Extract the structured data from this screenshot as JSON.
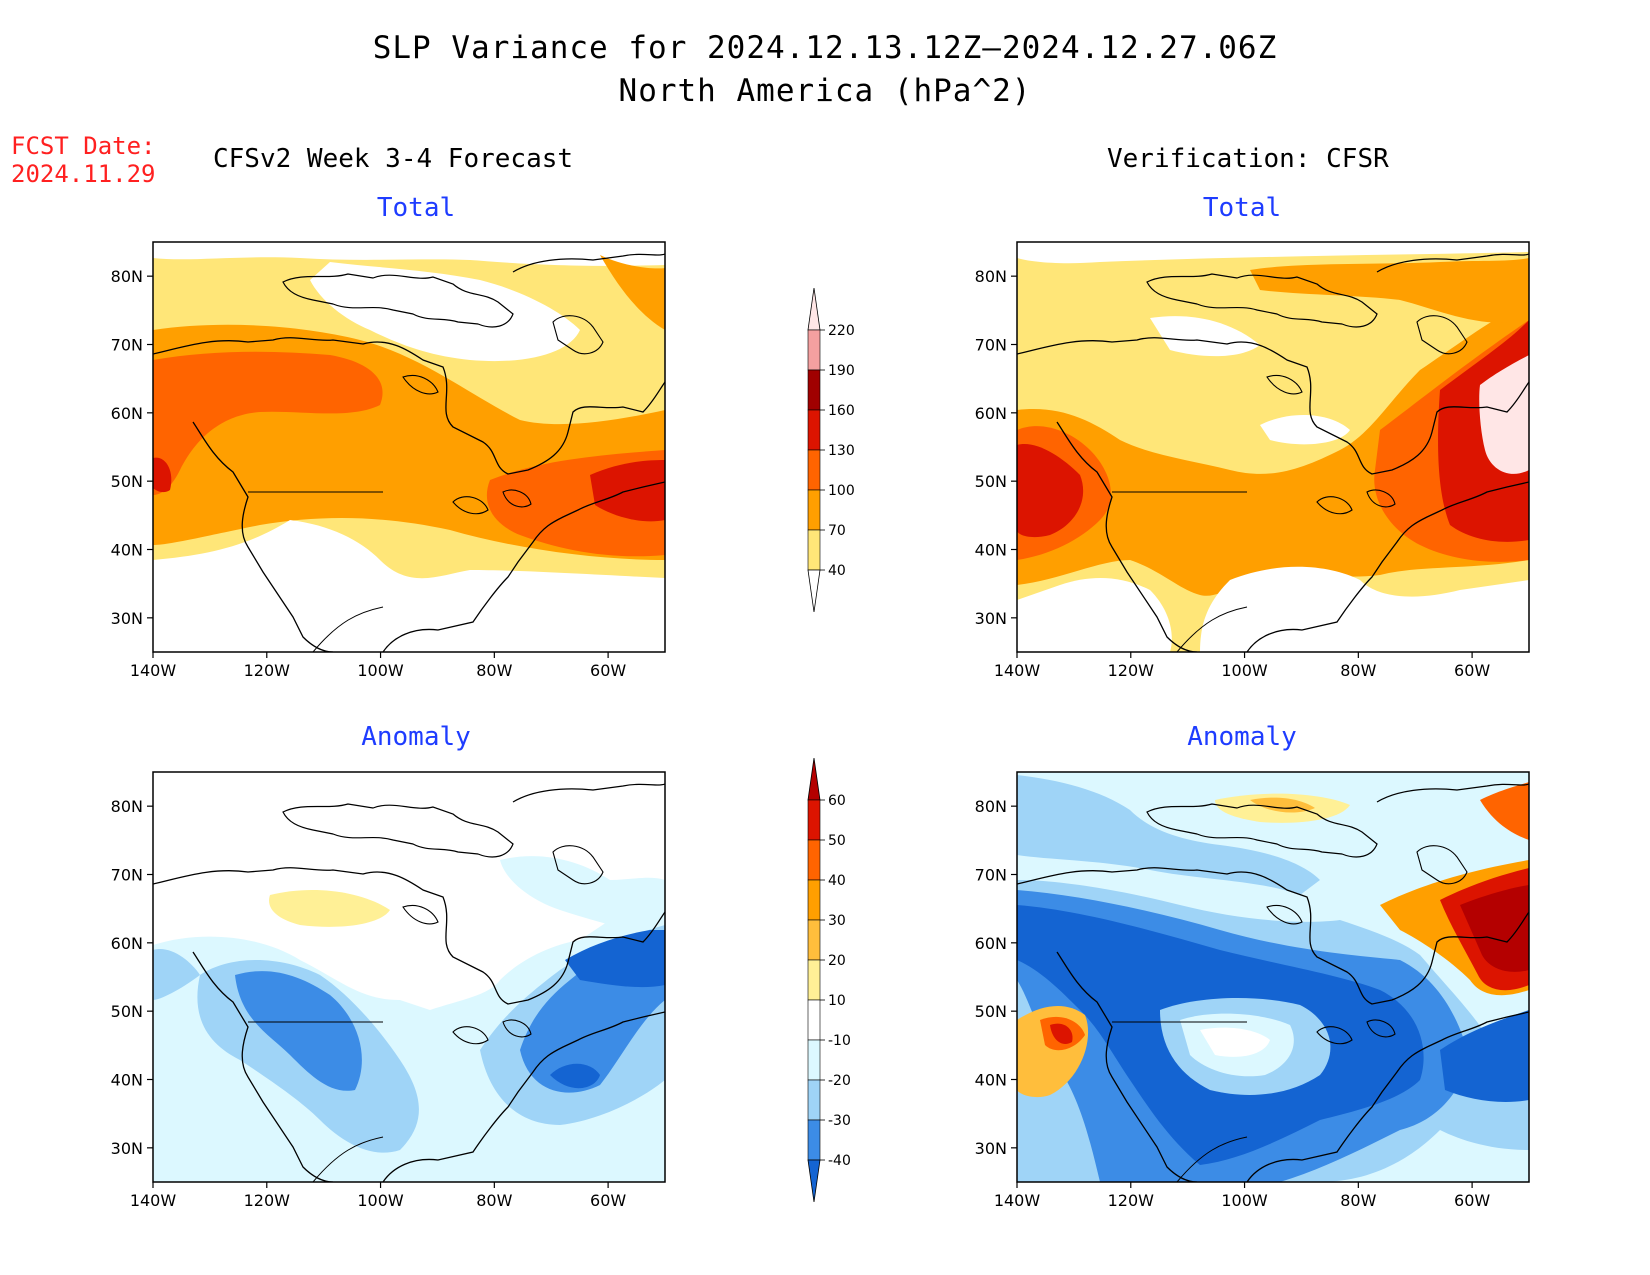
{
  "title_line1": "SLP Variance for 2024.12.13.12Z–2024.12.27.06Z",
  "title_line2": "North America (hPa^2)",
  "fcst_label": "FCST Date:",
  "fcst_date": "2024.11.29",
  "left_column_title": "CFSv2 Week 3-4 Forecast",
  "right_column_title": "Verification: CFSR",
  "panel_titles": {
    "total": "Total",
    "anomaly": "Anomaly"
  },
  "lon_ticks": [
    "140W",
    "120W",
    "100W",
    "80W",
    "60W"
  ],
  "lat_ticks": [
    "80N",
    "70N",
    "60N",
    "50N",
    "40N",
    "30N"
  ],
  "total_colorbar": {
    "levels": [
      "220",
      "190",
      "160",
      "130",
      "100",
      "70",
      "40"
    ],
    "colors": [
      "#ffe6e6",
      "#f4a0a0",
      "#a00000",
      "#dc1400",
      "#ff6400",
      "#ff9f00",
      "#ffe678"
    ]
  },
  "anomaly_colorbar": {
    "levels": [
      "60",
      "50",
      "40",
      "30",
      "20",
      "10",
      "-10",
      "-20",
      "-30",
      "-40"
    ],
    "colors": [
      "#b40000",
      "#dc1400",
      "#ff6400",
      "#ff9f00",
      "#ffbe3c",
      "#fff096",
      "#ffffff",
      "#dcf8ff",
      "#9fd4f7",
      "#3c8ce6",
      "#1464d2"
    ]
  },
  "colors": {
    "title_blue": "#1e3cff",
    "fcst_red": "#ff2020"
  }
}
